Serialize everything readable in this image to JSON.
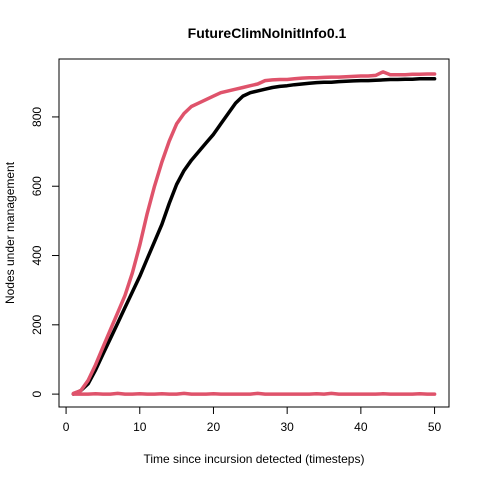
{
  "chart_data": {
    "type": "line",
    "title": "FutureClimNoInitInfo0.1",
    "xlabel": "Time since incursion detected (timesteps)",
    "ylabel": "Nodes under management",
    "xlim": [
      1,
      50
    ],
    "ylim": [
      0,
      930
    ],
    "xticks": [
      0,
      10,
      20,
      30,
      40,
      50
    ],
    "yticks": [
      0,
      200,
      400,
      600,
      800
    ],
    "grid": false,
    "legend": "none",
    "series": [
      {
        "color": "#000000",
        "x": [
          1,
          2,
          3,
          4,
          5,
          6,
          7,
          8,
          9,
          10,
          11,
          12,
          13,
          14,
          15,
          16,
          17,
          18,
          19,
          20,
          21,
          22,
          23,
          24,
          25,
          26,
          27,
          28,
          29,
          30,
          31,
          32,
          33,
          34,
          35,
          36,
          37,
          38,
          39,
          40,
          41,
          42,
          43,
          44,
          45,
          46,
          47,
          48,
          49,
          50
        ],
        "y": [
          0,
          10,
          30,
          70,
          115,
          160,
          205,
          250,
          295,
          340,
          390,
          440,
          490,
          550,
          605,
          645,
          675,
          700,
          725,
          750,
          780,
          810,
          840,
          860,
          870,
          875,
          880,
          885,
          888,
          890,
          893,
          895,
          897,
          899,
          900,
          900,
          902,
          903,
          904,
          905,
          905,
          906,
          907,
          908,
          908,
          909,
          909,
          910,
          910,
          910
        ]
      },
      {
        "color": "#DF536B",
        "x": [
          1,
          2,
          3,
          4,
          5,
          6,
          7,
          8,
          9,
          10,
          11,
          12,
          13,
          14,
          15,
          16,
          17,
          18,
          19,
          20,
          21,
          22,
          23,
          24,
          25,
          26,
          27,
          28,
          29,
          30,
          31,
          32,
          33,
          34,
          35,
          36,
          37,
          38,
          39,
          40,
          41,
          42,
          43,
          44,
          45,
          46,
          47,
          48,
          49,
          50
        ],
        "y": [
          2,
          10,
          40,
          85,
          135,
          185,
          235,
          285,
          350,
          430,
          520,
          600,
          670,
          730,
          780,
          810,
          830,
          840,
          850,
          860,
          870,
          875,
          880,
          885,
          890,
          895,
          905,
          907,
          908,
          908,
          910,
          912,
          913,
          913,
          914,
          915,
          915,
          916,
          917,
          918,
          918,
          920,
          930,
          922,
          922,
          922,
          923,
          923,
          924,
          924
        ]
      },
      {
        "color": "#DF536B",
        "x": [
          1,
          2,
          3,
          4,
          5,
          6,
          7,
          8,
          9,
          10,
          11,
          12,
          13,
          14,
          15,
          16,
          17,
          18,
          19,
          20,
          21,
          22,
          23,
          24,
          25,
          26,
          27,
          28,
          29,
          30,
          31,
          32,
          33,
          34,
          35,
          36,
          37,
          38,
          39,
          40,
          41,
          42,
          43,
          44,
          45,
          46,
          47,
          48,
          49,
          50
        ],
        "y": [
          0,
          0,
          0,
          1,
          0,
          0,
          2,
          0,
          0,
          1,
          0,
          0,
          1,
          0,
          0,
          2,
          0,
          0,
          0,
          1,
          0,
          0,
          0,
          0,
          0,
          2,
          0,
          0,
          0,
          0,
          0,
          0,
          0,
          1,
          0,
          2,
          0,
          0,
          0,
          0,
          0,
          0,
          1,
          0,
          0,
          0,
          0,
          1,
          0,
          0
        ]
      }
    ]
  }
}
